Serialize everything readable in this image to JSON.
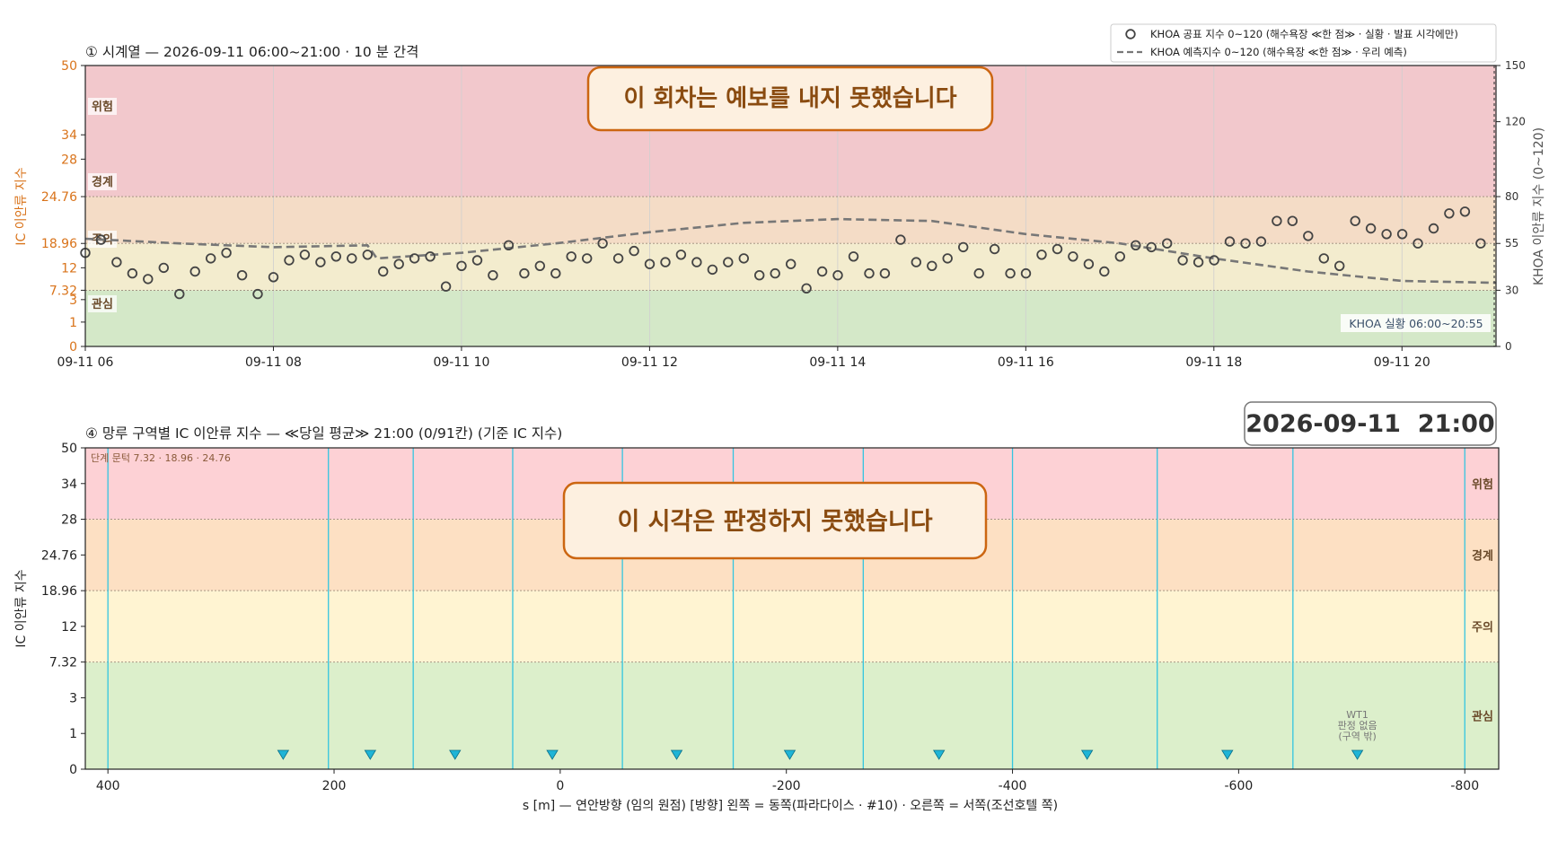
{
  "chart_data": [
    {
      "type": "scatter",
      "title": "① 시계열 — 2026-09-11 06:00~21:00 · 10 분 간격",
      "ylabel": "IC 이안류 지수",
      "y2label": "KHOA 이안류 지수 (0~120)",
      "x_tick_labels": [
        "09-11 06",
        "09-11 08",
        "09-11 10",
        "09-11 12",
        "09-11 14",
        "09-11 16",
        "09-11 18",
        "09-11 20"
      ],
      "x_tick_hours": [
        6,
        8,
        10,
        12,
        14,
        16,
        18,
        20
      ],
      "xlim_hours": [
        6,
        21
      ],
      "y_ticks": [
        "0",
        "1",
        "3",
        "7.32",
        "12",
        "18.96",
        "24.76",
        "28",
        "34",
        "50"
      ],
      "y2_ticks": [
        "0",
        "30",
        "55",
        "80",
        "120",
        "150"
      ],
      "y2lim": [
        0,
        150
      ],
      "bands": [
        {
          "name": "관심",
          "from": 0,
          "to": 30,
          "color": "#d4e8c8"
        },
        {
          "name": "주의",
          "from": 30,
          "to": 55,
          "color": "#f3ecce"
        },
        {
          "name": "경계",
          "from": 55,
          "to": 80,
          "color": "#f4dcc6"
        },
        {
          "name": "위험",
          "from": 80,
          "to": 150,
          "color": "#f2c8cc"
        }
      ],
      "band_thresholds_khoa": [
        30,
        55,
        80
      ],
      "series": [
        {
          "name": "KHOA 공표 지수 0~120 (해수욕장 ≪한 점≫ · 실황 · 발표 시각에만)",
          "style": "hollow-circle",
          "x_start_hour": 6.0,
          "x_step_hours": 0.1667,
          "values": [
            50,
            57,
            45,
            39,
            36,
            42,
            28,
            40,
            47,
            50,
            38,
            28,
            37,
            46,
            49,
            45,
            48,
            47,
            49,
            40,
            44,
            47,
            48,
            32,
            43,
            46,
            38,
            54,
            39,
            43,
            39,
            48,
            47,
            55,
            47,
            51,
            44,
            45,
            49,
            45,
            41,
            45,
            47,
            38,
            39,
            44,
            31,
            40,
            38,
            48,
            39,
            39,
            57,
            45,
            43,
            47,
            53,
            39,
            52,
            39,
            39,
            49,
            52,
            48,
            44,
            40,
            48,
            54,
            53,
            55,
            46,
            45,
            46,
            56,
            55,
            56,
            67,
            67,
            59,
            47,
            43,
            67,
            63,
            60,
            60,
            55,
            63,
            71,
            72,
            55,
            56,
            61,
            56,
            64,
            71,
            63,
            68,
            58,
            73,
            69,
            71,
            59,
            74,
            62,
            72,
            73,
            65,
            50,
            49,
            51,
            57,
            43,
            51,
            47,
            47,
            38,
            54,
            43,
            46,
            53,
            40,
            40,
            46,
            48,
            46,
            52,
            46,
            41,
            50,
            50,
            43,
            39,
            41,
            38,
            42,
            37,
            45,
            29,
            45,
            38,
            47,
            49,
            38,
            33,
            40,
            42,
            38,
            42,
            40,
            48,
            51,
            46,
            48,
            48,
            41,
            50,
            50,
            62,
            51,
            46,
            42,
            47,
            52,
            44,
            37,
            52,
            39,
            45,
            59,
            47,
            41,
            50,
            50,
            50,
            51,
            52,
            42,
            43,
            48,
            60,
            47,
            55,
            43,
            61,
            51,
            52
          ]
        },
        {
          "name": "KHOA 예측지수 0~120 (해수욕장 ≪한 점≫ · 우리 예측)",
          "style": "dashed-line",
          "points": [
            [
              6.0,
              57.5
            ],
            [
              7.0,
              55
            ],
            [
              8.0,
              53
            ],
            [
              9.0,
              54
            ],
            [
              9.1,
              47
            ],
            [
              10.0,
              50
            ],
            [
              11.0,
              55
            ],
            [
              12.0,
              61
            ],
            [
              13.0,
              66
            ],
            [
              14.0,
              68
            ],
            [
              15.0,
              67
            ],
            [
              16.0,
              60
            ],
            [
              17.0,
              55
            ],
            [
              18.0,
              47
            ],
            [
              19.0,
              40
            ],
            [
              20.0,
              35
            ],
            [
              21.0,
              34
            ]
          ]
        }
      ],
      "annotations": {
        "banner": "이 회차는 예보를 내지 못했습니다",
        "status_box": "KHOA 실황 06:00~20:55"
      },
      "legend_placement": "top-right",
      "grid": true
    },
    {
      "type": "bar",
      "title": "④ 망루 구역별 IC 이안류 지수 — ≪당일 평균≫ 21:00  (0/91칸)   (기준 IC 지수)",
      "ylabel": "IC 이안류 지수",
      "xlabel": "s [m] — 연안방향 (임의 원점)     [방향] 왼쪽 = 동쪽(파라다이스 · #10) · 오른쪽 = 서쪽(조선호텔 쪽)",
      "x_ticks": [
        400,
        200,
        0,
        -200,
        -400,
        -600,
        -800
      ],
      "xlim": [
        420,
        -830
      ],
      "y_ticks": [
        "0",
        "1",
        "3",
        "7.32",
        "12",
        "18.96",
        "24.76",
        "28",
        "34",
        "50"
      ],
      "bands": [
        {
          "name": "관심",
          "level_from": 0,
          "level_to": 3,
          "color": "#dcefcb"
        },
        {
          "name": "주의",
          "level_from": 3,
          "level_to": 5,
          "color": "#fff4d2"
        },
        {
          "name": "경계",
          "level_from": 5,
          "level_to": 7,
          "color": "#fde0c3"
        },
        {
          "name": "위험",
          "level_from": 7,
          "level_to": 9,
          "color": "#fdd1d5"
        }
      ],
      "zone_boundaries": [
        400,
        205,
        130,
        42,
        -55,
        -153,
        -268,
        -400,
        -528,
        -648,
        -800
      ],
      "tower_markers": [
        245,
        168,
        93,
        7,
        -103,
        -203,
        -335,
        -466,
        -590,
        -705
      ],
      "tower_labels": [
        {
          "x": -705,
          "lines": [
            "WT1",
            "판정 없음",
            "(구역 밖)"
          ]
        }
      ],
      "values": [],
      "annotations": {
        "threshold_note": "단계 문턱 7.32 · 18.96 · 24.76",
        "banner": "이 시각은 판정하지 못했습니다",
        "timestamp": "2026-09-11  21:00"
      },
      "grid": false
    }
  ],
  "colors": {
    "orange_text": "#d9731a",
    "banner_border": "#cc6611",
    "banner_text": "#8a4b10",
    "banner_bg": "#fdf0e0",
    "marker_edge": "#444444",
    "forecast_line": "#777777",
    "zone_line": "#33c5e0",
    "tower_marker": "#1fb4d6",
    "tick_text": "#222222",
    "band_label_text": "#555555"
  }
}
